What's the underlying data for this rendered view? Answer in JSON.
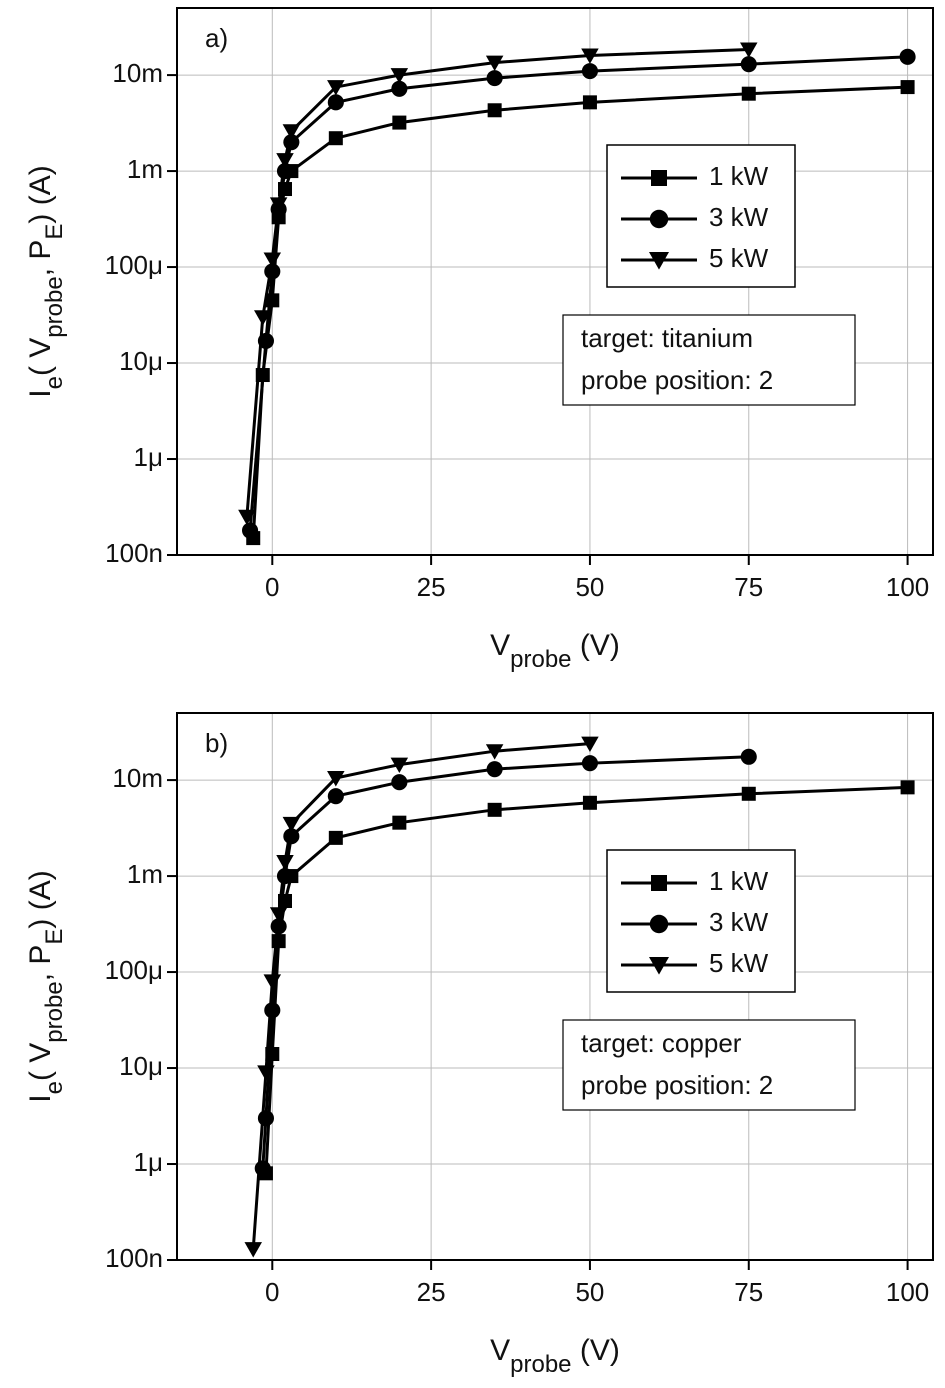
{
  "chart_data": [
    {
      "type": "line",
      "panel_label": "a)",
      "y_log": true,
      "grid": true,
      "legend_loc": "upper right",
      "xlim": [
        -15,
        104
      ],
      "xticks": [
        0,
        25,
        50,
        75,
        100
      ],
      "ylim": [
        1e-07,
        0.05
      ],
      "yticks": [
        {
          "value": 1e-07,
          "label": "100n"
        },
        {
          "value": 1e-06,
          "label": "1μ"
        },
        {
          "value": 1e-05,
          "label": "10μ"
        },
        {
          "value": 0.0001,
          "label": "100μ"
        },
        {
          "value": 0.001,
          "label": "1m"
        },
        {
          "value": 0.01,
          "label": "10m"
        }
      ],
      "x_label": [
        {
          "text": "V"
        },
        {
          "text": "probe",
          "sub": true
        },
        {
          "text": " (V)"
        }
      ],
      "y_label": [
        {
          "text": "I"
        },
        {
          "text": "e",
          "sub": true
        },
        {
          "text": "( V"
        },
        {
          "text": "probe",
          "sub": true
        },
        {
          "text": ", P"
        },
        {
          "text": "E",
          "sub": true
        },
        {
          "text": ")  (A)"
        }
      ],
      "annotation": [
        "target: titanium",
        "probe position: 2"
      ],
      "series": [
        {
          "name": "1 kW",
          "color": "#000000",
          "marker": "square",
          "x": [
            -3,
            -1.5,
            0,
            1,
            2,
            3,
            10,
            20,
            35,
            50,
            75,
            100
          ],
          "values": [
            1.5e-07,
            7.5e-06,
            4.5e-05,
            0.00033,
            0.00065,
            0.001,
            0.0022,
            0.0032,
            0.0043,
            0.0052,
            0.0064,
            0.0075
          ]
        },
        {
          "name": "3 kW",
          "color": "#000000",
          "marker": "circle",
          "x": [
            -3.5,
            -1,
            0,
            1,
            2,
            3,
            10,
            20,
            35,
            50,
            75,
            100
          ],
          "values": [
            1.8e-07,
            1.7e-05,
            9e-05,
            0.0004,
            0.001,
            0.002,
            0.0052,
            0.0072,
            0.0093,
            0.011,
            0.013,
            0.0155
          ]
        },
        {
          "name": "5 kW",
          "color": "#000000",
          "marker": "triangle-down",
          "x": [
            -4,
            -1.5,
            0,
            1,
            2,
            3,
            10,
            20,
            35,
            50,
            75
          ],
          "values": [
            2.5e-07,
            3e-05,
            0.00012,
            0.00045,
            0.0013,
            0.0026,
            0.0075,
            0.01,
            0.0135,
            0.016,
            0.0185
          ]
        }
      ]
    },
    {
      "type": "line",
      "panel_label": "b)",
      "y_log": true,
      "grid": true,
      "legend_loc": "upper right",
      "xlim": [
        -15,
        104
      ],
      "xticks": [
        0,
        25,
        50,
        75,
        100
      ],
      "ylim": [
        1e-07,
        0.05
      ],
      "yticks": [
        {
          "value": 1e-07,
          "label": "100n"
        },
        {
          "value": 1e-06,
          "label": "1μ"
        },
        {
          "value": 1e-05,
          "label": "10μ"
        },
        {
          "value": 0.0001,
          "label": "100μ"
        },
        {
          "value": 0.001,
          "label": "1m"
        },
        {
          "value": 0.01,
          "label": "10m"
        }
      ],
      "x_label": [
        {
          "text": "V"
        },
        {
          "text": "probe",
          "sub": true
        },
        {
          "text": " (V)"
        }
      ],
      "y_label": [
        {
          "text": "I"
        },
        {
          "text": "e",
          "sub": true
        },
        {
          "text": "( V"
        },
        {
          "text": "probe",
          "sub": true
        },
        {
          "text": ", P"
        },
        {
          "text": "E",
          "sub": true
        },
        {
          "text": ")  (A)"
        }
      ],
      "annotation": [
        "target: copper",
        "probe position: 2"
      ],
      "series": [
        {
          "name": "1 kW",
          "color": "#000000",
          "marker": "square",
          "x": [
            -1,
            0,
            1,
            2,
            3,
            10,
            20,
            35,
            50,
            75,
            100
          ],
          "values": [
            8e-07,
            1.4e-05,
            0.00021,
            0.00055,
            0.001,
            0.0025,
            0.0036,
            0.0049,
            0.0058,
            0.0072,
            0.0084
          ]
        },
        {
          "name": "3 kW",
          "color": "#000000",
          "marker": "circle",
          "x": [
            -1.5,
            -1,
            0,
            1,
            2,
            3,
            10,
            20,
            35,
            50,
            75
          ],
          "values": [
            9e-07,
            3e-06,
            4e-05,
            0.0003,
            0.001,
            0.0026,
            0.0068,
            0.0095,
            0.013,
            0.015,
            0.0175
          ]
        },
        {
          "name": "5 kW",
          "color": "#000000",
          "marker": "triangle-down",
          "x": [
            -3,
            -1,
            0,
            1,
            2,
            3,
            10,
            20,
            35,
            50
          ],
          "values": [
            1.3e-07,
            9e-06,
            8e-05,
            0.0004,
            0.0014,
            0.0035,
            0.0105,
            0.0145,
            0.02,
            0.024
          ]
        }
      ]
    }
  ]
}
